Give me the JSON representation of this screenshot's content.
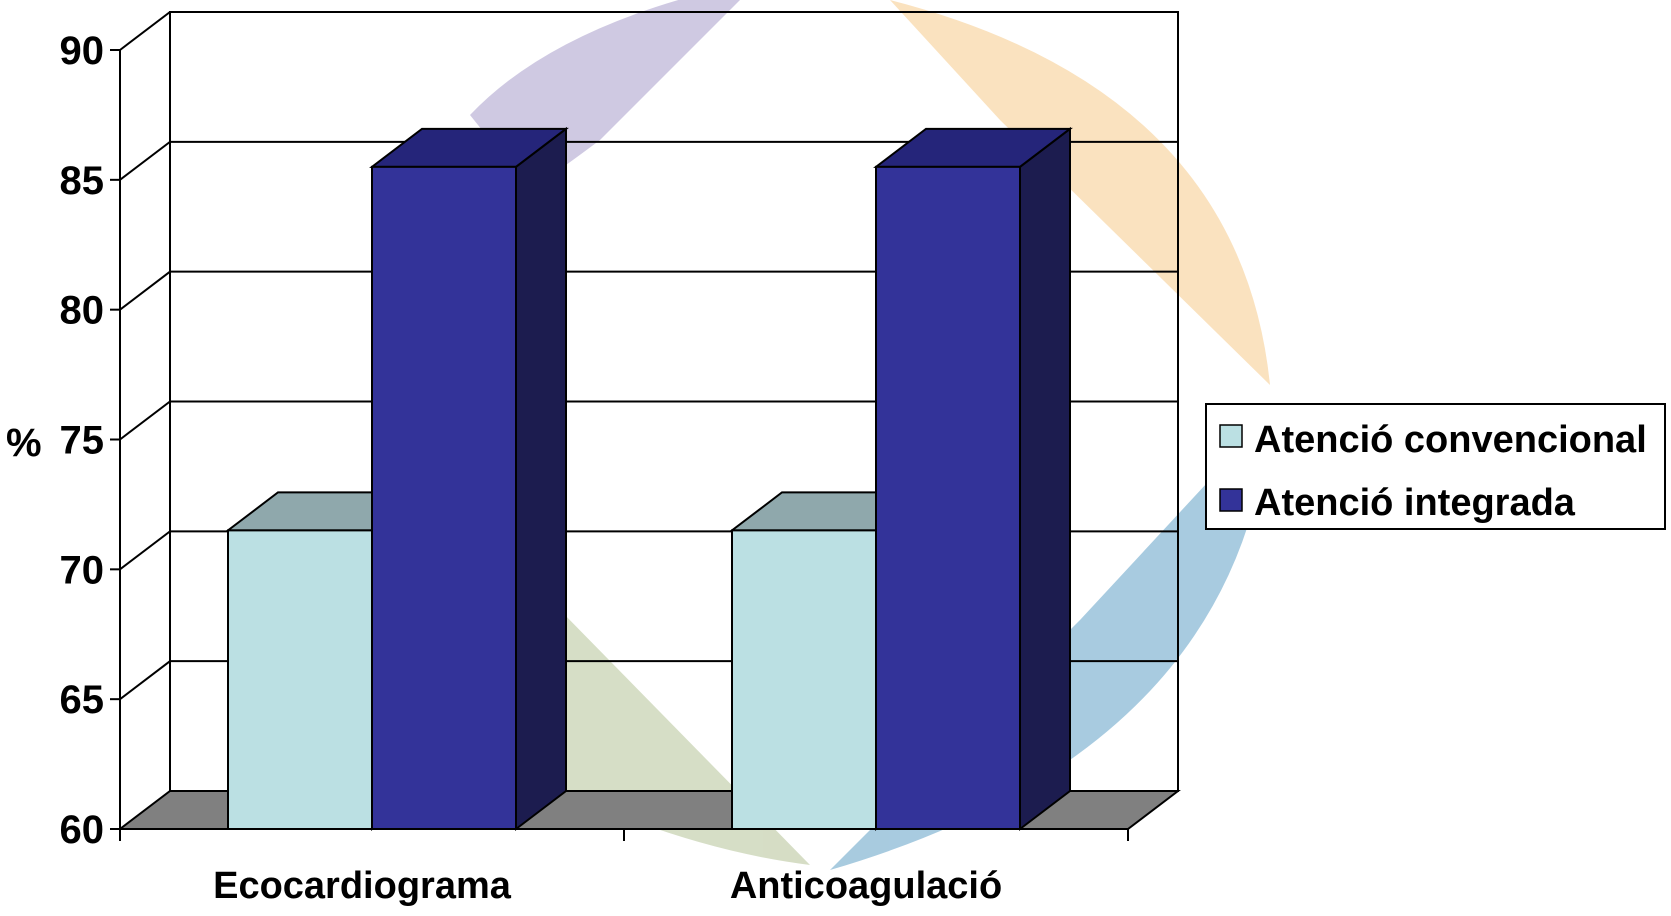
{
  "chart_data": {
    "type": "bar",
    "title": "",
    "xlabel": "",
    "ylabel": "%",
    "categories": [
      "Ecocardiograma",
      "Anticoagulació"
    ],
    "series": [
      {
        "name": "Atenció convencional",
        "values": [
          71.5,
          71.5
        ],
        "color": "#BBE0E3"
      },
      {
        "name": "Atenció integrada",
        "values": [
          85.5,
          85.5
        ],
        "color": "#333399"
      }
    ],
    "ylim": [
      60,
      90
    ],
    "yticks": [
      60,
      65,
      70,
      75,
      80,
      85,
      90
    ],
    "grid": true,
    "legend_position": "right",
    "three_d": true
  }
}
